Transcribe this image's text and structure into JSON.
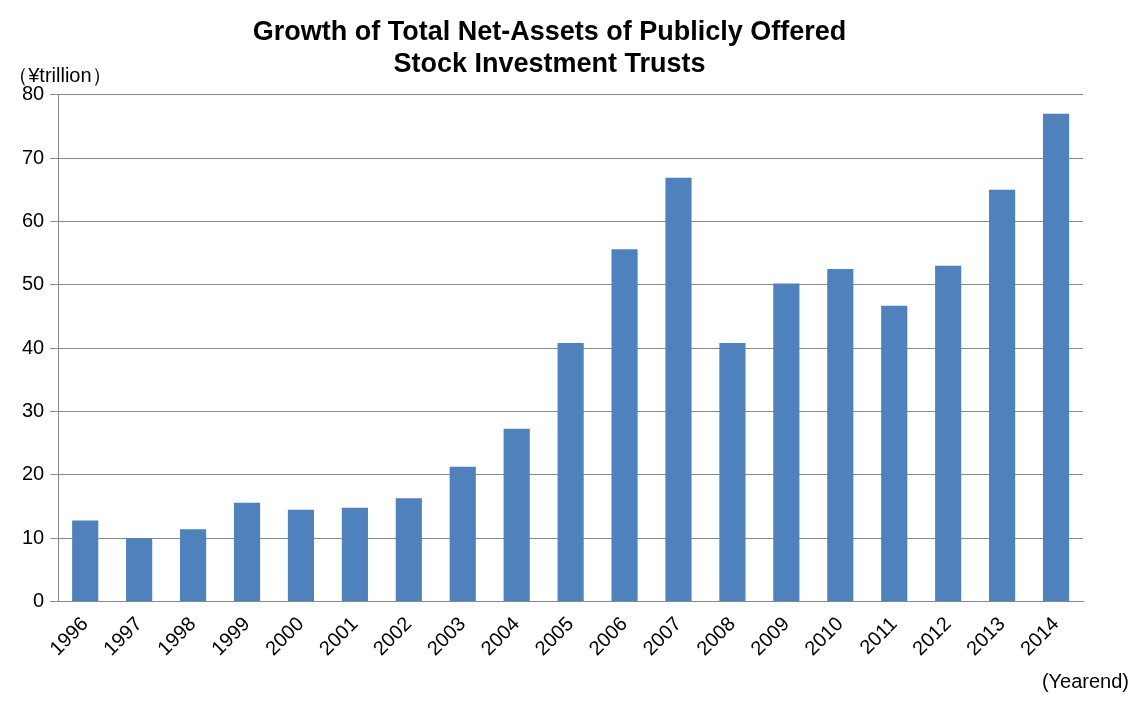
{
  "chart_data": {
    "type": "bar",
    "title": "Growth of Total Net-Assets of Publicly Offered\nStock Investment Trusts",
    "ylabel": "（¥trillion）",
    "xlabel": "(Yearend)",
    "categories": [
      "1996",
      "1997",
      "1998",
      "1999",
      "2000",
      "2001",
      "2002",
      "2003",
      "2004",
      "2005",
      "2006",
      "2007",
      "2008",
      "2009",
      "2010",
      "2011",
      "2012",
      "2013",
      "2014"
    ],
    "values": [
      12.8,
      10.0,
      11.4,
      15.6,
      14.5,
      14.8,
      16.3,
      21.3,
      27.3,
      40.8,
      55.6,
      66.9,
      40.8,
      50.2,
      52.5,
      46.7,
      53.0,
      65.0,
      77.0
    ],
    "color": "#4f81bd",
    "ylim": [
      0,
      80
    ],
    "yticks": [
      0,
      10,
      20,
      30,
      40,
      50,
      60,
      70,
      80
    ],
    "grid": "y"
  }
}
